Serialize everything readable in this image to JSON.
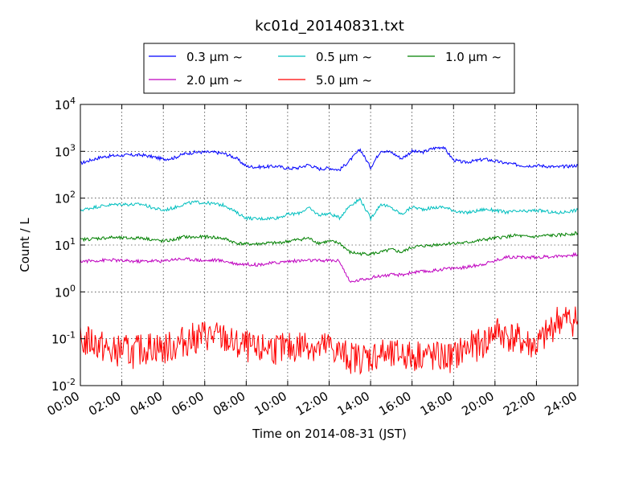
{
  "chart_data": {
    "type": "line",
    "title": "kc01d_20140831.txt",
    "xlabel": "Time on 2014-08-31 (JST)",
    "ylabel": "Count / L",
    "xlim": [
      "00:00",
      "24:00"
    ],
    "ylim": [
      0.01,
      10000
    ],
    "yscale": "log",
    "grid": true,
    "legend": {
      "placement": "top-center",
      "columns": 3
    },
    "x_ticks": [
      "00:00",
      "02:00",
      "04:00",
      "06:00",
      "08:00",
      "10:00",
      "12:00",
      "14:00",
      "16:00",
      "18:00",
      "20:00",
      "22:00",
      "24:00"
    ],
    "y_ticks": [
      {
        "base": "10",
        "exp": "-2",
        "value": 0.01
      },
      {
        "base": "10",
        "exp": "-1",
        "value": 0.1
      },
      {
        "base": "10",
        "exp": "0",
        "value": 1
      },
      {
        "base": "10",
        "exp": "1",
        "value": 10
      },
      {
        "base": "10",
        "exp": "2",
        "value": 100
      },
      {
        "base": "10",
        "exp": "3",
        "value": 1000
      },
      {
        "base": "10",
        "exp": "4",
        "value": 10000
      }
    ],
    "x": [
      "00:00",
      "00:30",
      "01:00",
      "01:30",
      "02:00",
      "02:30",
      "03:00",
      "03:30",
      "04:00",
      "04:30",
      "05:00",
      "05:30",
      "06:00",
      "06:30",
      "07:00",
      "07:30",
      "08:00",
      "08:30",
      "09:00",
      "09:30",
      "10:00",
      "10:30",
      "11:00",
      "11:30",
      "12:00",
      "12:30",
      "13:00",
      "13:30",
      "14:00",
      "14:30",
      "15:00",
      "15:30",
      "16:00",
      "16:30",
      "17:00",
      "17:30",
      "18:00",
      "18:30",
      "19:00",
      "19:30",
      "20:00",
      "20:30",
      "21:00",
      "21:30",
      "22:00",
      "22:30",
      "23:00",
      "23:30",
      "24:00"
    ],
    "series": [
      {
        "name": "0.3 μm ~",
        "color": "#0000ff",
        "values": [
          550,
          650,
          750,
          800,
          820,
          830,
          830,
          760,
          680,
          720,
          880,
          950,
          960,
          950,
          880,
          720,
          480,
          460,
          470,
          480,
          430,
          440,
          520,
          420,
          440,
          400,
          640,
          1100,
          450,
          1050,
          950,
          700,
          1000,
          950,
          1150,
          1250,
          650,
          580,
          620,
          680,
          620,
          560,
          520,
          490,
          500,
          480,
          460,
          480,
          500
        ]
      },
      {
        "name": "0.5 μm ~",
        "color": "#00bfbf",
        "values": [
          55,
          62,
          68,
          72,
          75,
          73,
          74,
          62,
          55,
          62,
          75,
          82,
          80,
          75,
          70,
          50,
          38,
          36,
          37,
          38,
          45,
          47,
          62,
          44,
          47,
          38,
          70,
          95,
          37,
          75,
          62,
          45,
          65,
          58,
          62,
          65,
          55,
          48,
          52,
          58,
          55,
          50,
          52,
          52,
          55,
          52,
          48,
          52,
          56
        ]
      },
      {
        "name": "1.0 μm ~",
        "color": "#008000",
        "values": [
          13,
          13.5,
          14,
          14.5,
          14,
          14,
          14.2,
          13,
          12,
          13,
          15,
          14.5,
          15,
          14.5,
          13.5,
          11,
          10.5,
          10.5,
          11,
          11,
          12,
          13,
          14,
          11,
          12,
          11,
          7,
          6.5,
          6.5,
          7,
          8,
          7,
          9,
          9.5,
          10,
          10.5,
          11,
          11,
          12,
          13,
          14,
          15,
          16,
          15,
          15,
          16,
          16,
          17,
          18
        ]
      },
      {
        "name": "2.0 μm ~",
        "color": "#bf00bf",
        "values": [
          4.5,
          4.6,
          4.7,
          4.8,
          4.6,
          4.5,
          4.5,
          4.6,
          4.5,
          5,
          5,
          4.9,
          4.6,
          4.8,
          4.5,
          4,
          3.9,
          3.8,
          4,
          4.2,
          4.5,
          4.6,
          4.7,
          4.6,
          4.7,
          4.6,
          1.6,
          1.8,
          2,
          2.2,
          2.3,
          2.3,
          2.6,
          2.7,
          2.8,
          3.1,
          3.2,
          3.3,
          3.6,
          4,
          4.6,
          5.5,
          5.6,
          5.4,
          5.5,
          5.6,
          5.8,
          6,
          6.3
        ]
      },
      {
        "name": "5.0 μm ~",
        "color": "#ff0000",
        "values": [
          0.08,
          0.09,
          0.07,
          0.05,
          0.06,
          0.05,
          0.06,
          0.07,
          0.06,
          0.07,
          0.09,
          0.1,
          0.12,
          0.11,
          0.1,
          0.07,
          0.07,
          0.05,
          0.07,
          0.06,
          0.06,
          0.07,
          0.08,
          0.06,
          0.07,
          0.05,
          0.04,
          0.04,
          0.04,
          0.05,
          0.04,
          0.05,
          0.04,
          0.05,
          0.04,
          0.04,
          0.04,
          0.06,
          0.07,
          0.08,
          0.15,
          0.12,
          0.1,
          0.08,
          0.07,
          0.12,
          0.25,
          0.25,
          0.25
        ]
      }
    ]
  }
}
